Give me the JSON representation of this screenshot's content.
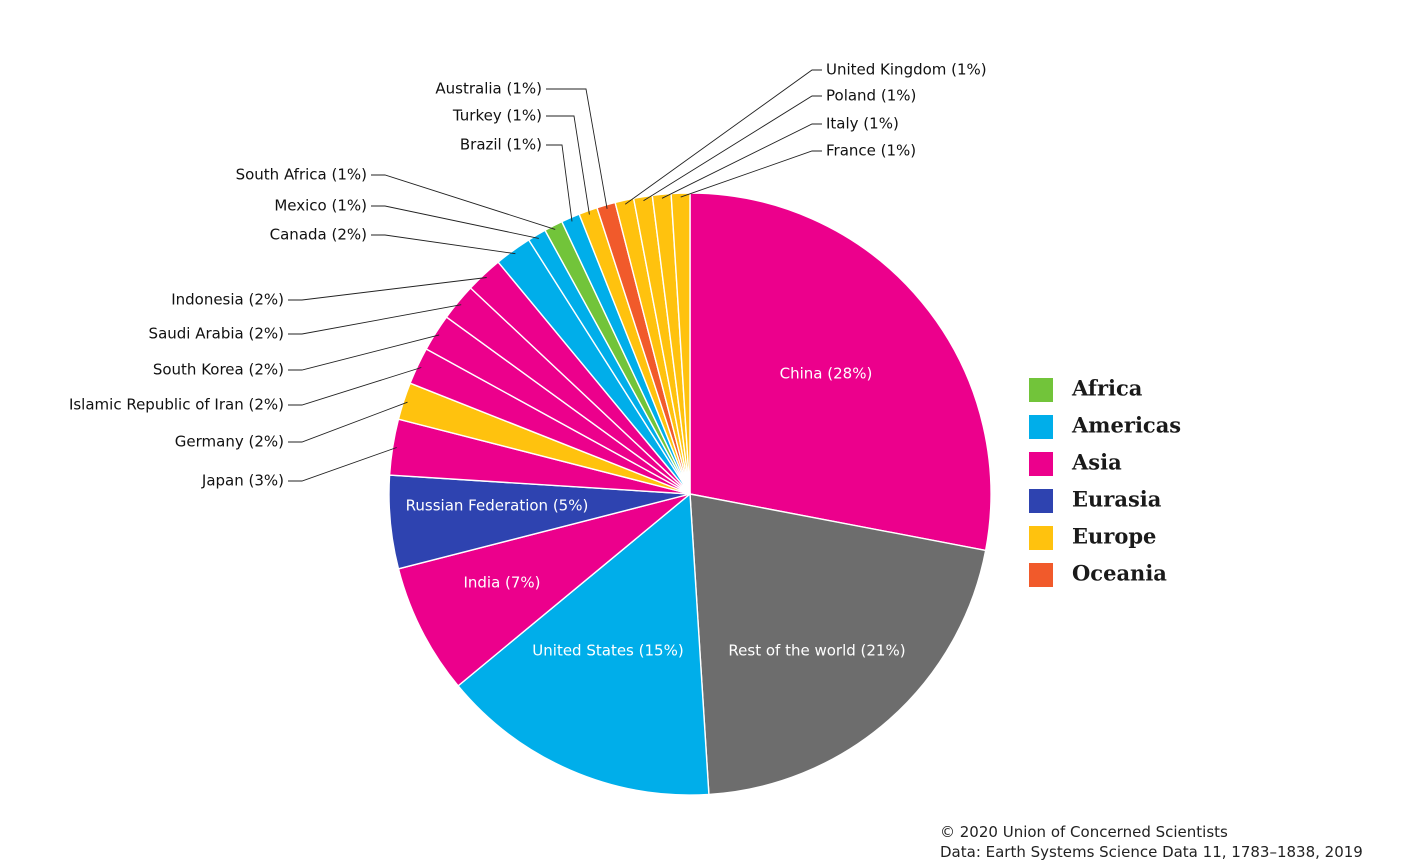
{
  "chart_data": {
    "type": "pie",
    "slices": [
      {
        "label": "China (28%)",
        "value": 28,
        "region": "Asia"
      },
      {
        "label": "Rest of the world (21%)",
        "value": 21,
        "region": "Other"
      },
      {
        "label": "United States (15%)",
        "value": 15,
        "region": "Americas"
      },
      {
        "label": "India (7%)",
        "value": 7,
        "region": "Asia"
      },
      {
        "label": "Russian Federation (5%)",
        "value": 5,
        "region": "Eurasia"
      },
      {
        "label": "Japan (3%)",
        "value": 3,
        "region": "Asia"
      },
      {
        "label": "Germany (2%)",
        "value": 2,
        "region": "Europe"
      },
      {
        "label": "Islamic Republic of Iran (2%)",
        "value": 2,
        "region": "Asia"
      },
      {
        "label": "South Korea (2%)",
        "value": 2,
        "region": "Asia"
      },
      {
        "label": "Saudi Arabia (2%)",
        "value": 2,
        "region": "Asia"
      },
      {
        "label": "Indonesia (2%)",
        "value": 2,
        "region": "Asia"
      },
      {
        "label": "Canada (2%)",
        "value": 2,
        "region": "Americas"
      },
      {
        "label": "Mexico (1%)",
        "value": 1,
        "region": "Americas"
      },
      {
        "label": "South Africa (1%)",
        "value": 1,
        "region": "Africa"
      },
      {
        "label": "Brazil (1%)",
        "value": 1,
        "region": "Americas"
      },
      {
        "label": "Turkey (1%)",
        "value": 1,
        "region": "Europe"
      },
      {
        "label": "Australia (1%)",
        "value": 1,
        "region": "Oceania"
      },
      {
        "label": "United Kingdom (1%)",
        "value": 1,
        "region": "Europe"
      },
      {
        "label": "Poland (1%)",
        "value": 1,
        "region": "Europe"
      },
      {
        "label": "Italy (1%)",
        "value": 1,
        "region": "Europe"
      },
      {
        "label": "France (1%)",
        "value": 1,
        "region": "Europe"
      }
    ],
    "legend": {
      "placement": "right",
      "entries": [
        {
          "name": "Africa",
          "color": "#72c43a"
        },
        {
          "name": "Americas",
          "color": "#00aeea"
        },
        {
          "name": "Asia",
          "color": "#ec008c"
        },
        {
          "name": "Eurasia",
          "color": "#2e43b0"
        },
        {
          "name": "Europe",
          "color": "#ffc20e"
        },
        {
          "name": "Oceania",
          "color": "#f15a2b"
        }
      ]
    },
    "other_color": "#6d6d6d"
  },
  "credits": {
    "copyright": "© 2020 Union of Concerned Scientists",
    "source": "Data: Earth Systems Science Data 11, 1783–1838, 2019"
  }
}
